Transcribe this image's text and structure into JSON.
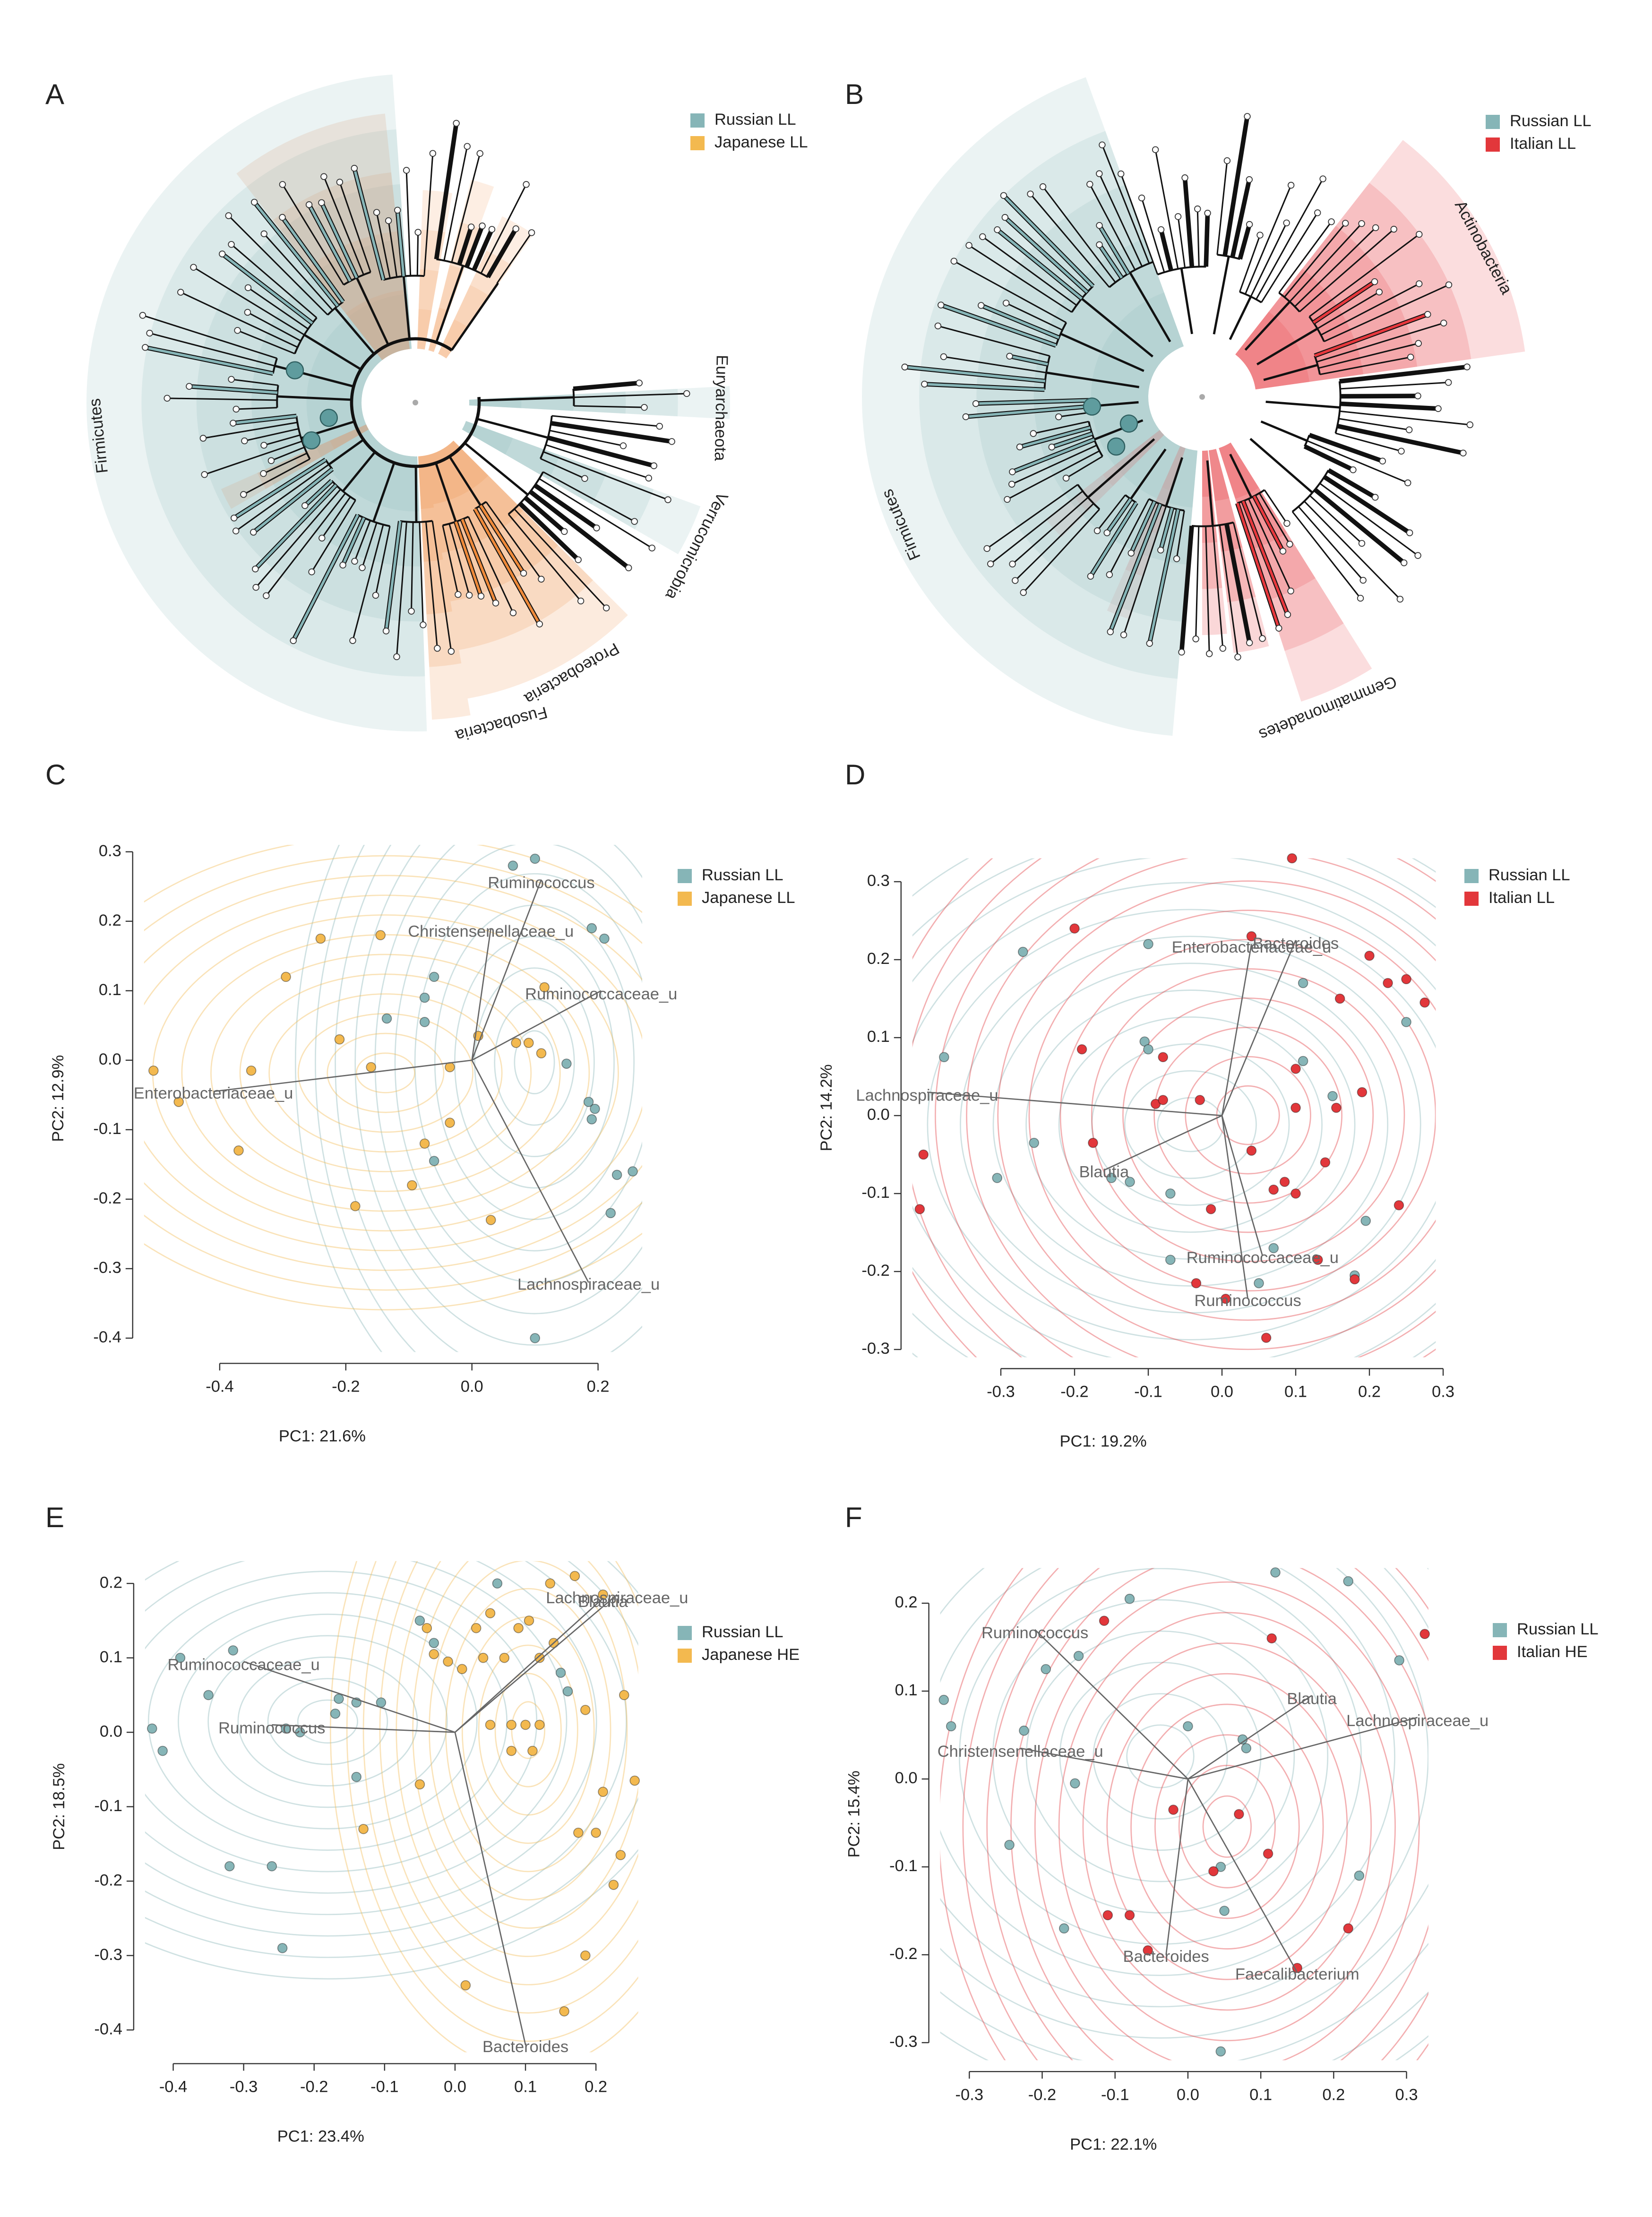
{
  "cladograms": [
    {
      "label": "A",
      "legend": [
        {
          "name": "Russian LL",
          "color": "#86b5b7"
        },
        {
          "name": "Japanese LL",
          "color": "#f3b94f"
        }
      ],
      "clades": [
        {
          "name": "Firmicutes",
          "color": "#86b5b7",
          "label_color": "#26307a"
        },
        {
          "name": "Euryarchaeota",
          "color": "#86b5b7",
          "label_color": "#26307a"
        },
        {
          "name": "Verrucomicrobia",
          "color": "#86b5b7",
          "label_color": "#26307a"
        },
        {
          "name": "Proteobacteria",
          "color": "#ef8a3a",
          "label_color": "#7a2222"
        },
        {
          "name": "Fusobacteria",
          "color": "#ef8a3a",
          "label_color": "#7a2222"
        }
      ]
    },
    {
      "label": "B",
      "legend": [
        {
          "name": "Russian LL",
          "color": "#86b5b7"
        },
        {
          "name": "Italian LL",
          "color": "#e2373b"
        }
      ],
      "clades": [
        {
          "name": "Actinobacteria",
          "color": "#e8383d",
          "label_color": "#7a2222"
        },
        {
          "name": "Firmicutes",
          "color": "#86b5b7",
          "label_color": "#26307a"
        },
        {
          "name": "Gemmatimonadetes",
          "color": "#e8383d",
          "label_color": "#7a2222"
        }
      ]
    }
  ],
  "chart_data": [
    {
      "type": "scatter",
      "label": "C",
      "xlabel": "PC1: 21.6%",
      "ylabel": "PC2: 12.9%",
      "xlim": [
        -0.52,
        0.27
      ],
      "ylim": [
        -0.42,
        0.31
      ],
      "xticks": [
        -0.4,
        -0.2,
        {
          "value": 0,
          "label": "0.0"
        },
        0.2
      ],
      "yticks": [
        -0.4,
        -0.3,
        -0.2,
        -0.1,
        {
          "value": 0,
          "label": "0.0"
        },
        0.1,
        0.2,
        0.3
      ],
      "series": [
        {
          "name": "Russian LL",
          "color": "#86b5b7",
          "x": [
            0.065,
            0.1,
            0.19,
            0.21,
            -0.06,
            -0.075,
            -0.135,
            -0.075,
            0.15,
            0.185,
            0.195,
            0.19,
            0.23,
            0.255,
            0.22,
            -0.06,
            0.1
          ],
          "y": [
            0.28,
            0.29,
            0.19,
            0.175,
            0.12,
            0.09,
            0.06,
            0.055,
            -0.005,
            -0.06,
            -0.07,
            -0.085,
            -0.165,
            -0.16,
            -0.22,
            -0.145,
            -0.4
          ]
        },
        {
          "name": "Japanese LL",
          "color": "#f3b94f",
          "x": [
            -0.505,
            -0.465,
            -0.37,
            -0.35,
            -0.295,
            -0.24,
            -0.21,
            -0.16,
            -0.185,
            -0.095,
            -0.075,
            -0.035,
            -0.035,
            0.01,
            0.03,
            0.07,
            0.09,
            0.11,
            0.115,
            -0.145
          ],
          "y": [
            -0.015,
            -0.06,
            -0.13,
            -0.015,
            0.12,
            0.175,
            0.03,
            -0.01,
            -0.21,
            -0.18,
            -0.12,
            -0.09,
            -0.01,
            0.035,
            -0.23,
            0.025,
            0.025,
            0.01,
            0.105,
            0.18
          ]
        }
      ],
      "loadings": [
        {
          "label": "Ruminococcus",
          "x": 0.11,
          "y": 0.26
        },
        {
          "label": "Christensenellaceae_u",
          "x": 0.03,
          "y": 0.19
        },
        {
          "label": "Ruminococcaceae_u",
          "x": 0.205,
          "y": 0.1
        },
        {
          "label": "Enterobacteriaceae_u",
          "x": -0.41,
          "y": -0.045
        },
        {
          "label": "Lachnospiraceae_u",
          "x": 0.185,
          "y": -0.32
        }
      ]
    },
    {
      "type": "scatter",
      "label": "D",
      "xlabel": "PC1: 19.2%",
      "ylabel": "PC2: 14.2%",
      "xlim": [
        -0.42,
        0.29
      ],
      "ylim": [
        -0.31,
        0.33
      ],
      "xticks": [
        -0.3,
        -0.2,
        -0.1,
        {
          "value": 0,
          "label": "0.0"
        },
        0.1,
        0.2,
        0.3
      ],
      "yticks": [
        -0.3,
        -0.2,
        -0.1,
        {
          "value": 0,
          "label": "0.0"
        },
        0.1,
        0.2,
        0.3
      ],
      "series": [
        {
          "name": "Russian LL",
          "color": "#86b5b7",
          "x": [
            -0.377,
            -0.27,
            -0.1,
            -0.105,
            -0.1,
            -0.305,
            -0.255,
            -0.15,
            -0.125,
            -0.07,
            -0.07,
            0.05,
            0.07,
            0.11,
            0.11,
            0.15,
            0.195,
            0.18,
            0.25
          ],
          "y": [
            0.075,
            0.21,
            0.22,
            0.095,
            0.085,
            -0.08,
            -0.035,
            -0.08,
            -0.085,
            -0.1,
            -0.185,
            -0.215,
            -0.17,
            0.17,
            0.07,
            0.025,
            -0.135,
            -0.205,
            0.12
          ]
        },
        {
          "name": "Italian LL",
          "color": "#e2373b",
          "x": [
            0.095,
            -0.2,
            -0.405,
            -0.41,
            -0.19,
            -0.175,
            -0.08,
            -0.09,
            -0.08,
            -0.03,
            0.04,
            0.04,
            0.07,
            -0.015,
            -0.035,
            0.06,
            0.005,
            0.1,
            0.1,
            0.155,
            0.16,
            0.2,
            0.25,
            0.275,
            0.225,
            0.085,
            0.1,
            0.14,
            0.19,
            0.24,
            0.18,
            0.13
          ],
          "y": [
            0.33,
            0.24,
            -0.05,
            -0.12,
            0.085,
            -0.035,
            0.075,
            0.015,
            0.02,
            0.02,
            0.23,
            -0.045,
            -0.095,
            -0.12,
            -0.215,
            -0.285,
            -0.235,
            0.01,
            0.06,
            0.01,
            0.15,
            0.205,
            0.175,
            0.145,
            0.17,
            -0.085,
            -0.1,
            -0.06,
            0.03,
            -0.115,
            -0.21,
            -0.185
          ]
        }
      ],
      "loadings": [
        {
          "label": "Enterobacteriaceae_u",
          "x": 0.04,
          "y": 0.22
        },
        {
          "label": "Bacteroides",
          "x": 0.1,
          "y": 0.225
        },
        {
          "label": "Lachnospiraceae_u",
          "x": -0.4,
          "y": 0.03
        },
        {
          "label": "Blautia",
          "x": -0.16,
          "y": -0.07
        },
        {
          "label": "Ruminococcaceae_u",
          "x": 0.055,
          "y": -0.18
        },
        {
          "label": "Ruminococcus",
          "x": 0.035,
          "y": -0.235
        }
      ]
    },
    {
      "type": "scatter",
      "label": "E",
      "xlabel": "PC1: 23.4%",
      "ylabel": "PC2: 18.5%",
      "xlim": [
        -0.44,
        0.26
      ],
      "ylim": [
        -0.43,
        0.23
      ],
      "xticks": [
        -0.4,
        -0.3,
        -0.2,
        -0.1,
        {
          "value": 0,
          "label": "0.0"
        },
        0.1,
        0.2
      ],
      "yticks": [
        -0.4,
        -0.3,
        -0.2,
        -0.1,
        {
          "value": 0,
          "label": "0.0"
        },
        0.1,
        0.2
      ],
      "series": [
        {
          "name": "Russian LL",
          "color": "#86b5b7",
          "x": [
            -0.43,
            -0.415,
            -0.39,
            -0.35,
            -0.315,
            -0.32,
            -0.26,
            -0.245,
            -0.24,
            -0.22,
            -0.165,
            -0.17,
            -0.14,
            -0.105,
            -0.14,
            -0.05,
            0.06,
            0.15,
            0.16,
            -0.03
          ],
          "y": [
            0.005,
            -0.025,
            0.1,
            0.05,
            0.11,
            -0.18,
            -0.18,
            -0.29,
            0.005,
            0,
            0.045,
            0.025,
            0.04,
            0.04,
            -0.06,
            0.15,
            0.2,
            0.08,
            0.055,
            0.12
          ]
        },
        {
          "name": "Japanese HE",
          "color": "#f3b94f",
          "x": [
            -0.04,
            -0.03,
            -0.01,
            0.01,
            0.03,
            0.04,
            0.05,
            0.07,
            0.09,
            0.105,
            0.135,
            0.17,
            0.21,
            0.12,
            0.14,
            0.08,
            0.1,
            0.12,
            0.05,
            0.08,
            0.11,
            0.185,
            0.24,
            0.255,
            0.21,
            0.175,
            0.2,
            0.235,
            0.225,
            0.185,
            0.155,
            0.015,
            -0.05,
            -0.13
          ],
          "y": [
            0.14,
            0.105,
            0.095,
            0.085,
            0.14,
            0.1,
            0.16,
            0.1,
            0.14,
            0.15,
            0.2,
            0.21,
            0.185,
            0.1,
            0.12,
            0.01,
            0.01,
            0.01,
            0.01,
            -0.025,
            -0.025,
            0.03,
            0.05,
            -0.065,
            -0.08,
            -0.135,
            -0.135,
            -0.165,
            -0.205,
            -0.3,
            -0.375,
            -0.34,
            -0.07,
            -0.13
          ]
        }
      ],
      "loadings": [
        {
          "label": "Lachnospiraceae_u",
          "x": 0.23,
          "y": 0.185
        },
        {
          "label": "Blautia",
          "x": 0.21,
          "y": 0.18
        },
        {
          "label": "Ruminococcaceae_u",
          "x": -0.3,
          "y": 0.095
        },
        {
          "label": "Ruminococcus",
          "x": -0.26,
          "y": 0.01
        },
        {
          "label": "Bacteroides",
          "x": 0.1,
          "y": -0.42
        }
      ]
    },
    {
      "type": "scatter",
      "label": "F",
      "xlabel": "PC1: 22.1%",
      "ylabel": "PC2: 15.4%",
      "xlim": [
        -0.34,
        0.33
      ],
      "ylim": [
        -0.32,
        0.24
      ],
      "xticks": [
        -0.3,
        -0.2,
        -0.1,
        {
          "value": 0,
          "label": "0.0"
        },
        0.1,
        0.2,
        0.3
      ],
      "yticks": [
        -0.3,
        -0.2,
        -0.1,
        {
          "value": 0,
          "label": "0.0"
        },
        0.1,
        0.2
      ],
      "series": [
        {
          "name": "Russian LL",
          "color": "#86b5b7",
          "x": [
            -0.335,
            -0.325,
            -0.225,
            -0.195,
            -0.15,
            -0.08,
            -0.155,
            -0.245,
            -0.17,
            0,
            0.075,
            0.08,
            0.12,
            0.22,
            0.29,
            0.235,
            0.045,
            0.05,
            0.045
          ],
          "y": [
            0.09,
            0.06,
            0.055,
            0.125,
            0.14,
            0.205,
            -0.005,
            -0.075,
            -0.17,
            0.06,
            0.045,
            0.035,
            0.235,
            0.225,
            0.135,
            -0.11,
            -0.1,
            -0.15,
            -0.31
          ]
        },
        {
          "name": "Italian HE",
          "color": "#e2373b",
          "x": [
            -0.115,
            0.115,
            0.325,
            -0.02,
            0.07,
            0.035,
            0.11,
            -0.11,
            -0.08,
            -0.055,
            0.15,
            0.22
          ],
          "y": [
            0.18,
            0.16,
            0.165,
            -0.035,
            -0.04,
            -0.105,
            -0.085,
            -0.155,
            -0.155,
            -0.195,
            -0.215,
            -0.17
          ]
        }
      ],
      "loadings": [
        {
          "label": "Ruminococcus",
          "x": -0.21,
          "y": 0.17
        },
        {
          "label": "Christensenellaceae_u",
          "x": -0.23,
          "y": 0.035
        },
        {
          "label": "Blautia",
          "x": 0.17,
          "y": 0.095
        },
        {
          "label": "Lachnospiraceae_u",
          "x": 0.315,
          "y": 0.07
        },
        {
          "label": "Bacteroides",
          "x": -0.03,
          "y": -0.2
        },
        {
          "label": "Faecalibacterium",
          "x": 0.15,
          "y": -0.22
        }
      ]
    }
  ]
}
